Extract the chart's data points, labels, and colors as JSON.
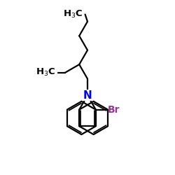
{
  "bg_color": "#ffffff",
  "line_color": "#000000",
  "N_color": "#0000ee",
  "Br_color": "#993399",
  "line_width": 1.6,
  "font_size": 9.5,
  "figsize": [
    2.5,
    2.5
  ],
  "dpi": 100,
  "xlim": [
    0,
    10
  ],
  "ylim": [
    0,
    10
  ]
}
